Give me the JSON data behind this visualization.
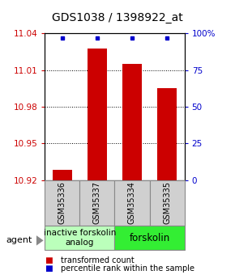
{
  "title": "GDS1038 / 1398922_at",
  "samples": [
    "GSM35336",
    "GSM35337",
    "GSM35334",
    "GSM35335"
  ],
  "bar_values": [
    10.928,
    11.028,
    11.015,
    10.995
  ],
  "percentile_values": [
    97,
    97,
    97,
    97
  ],
  "ylim_left": [
    10.92,
    11.04
  ],
  "ylim_right": [
    0,
    100
  ],
  "yticks_left": [
    10.92,
    10.95,
    10.98,
    11.01,
    11.04
  ],
  "ytick_labels_left": [
    "10.92",
    "10.95",
    "10.98",
    "11.01",
    "11.04"
  ],
  "yticks_right": [
    0,
    25,
    50,
    75,
    100
  ],
  "ytick_labels_right": [
    "0",
    "25",
    "50",
    "75",
    "100%"
  ],
  "bar_color": "#cc0000",
  "dot_color": "#0000cc",
  "bar_width": 0.55,
  "group0_label": "inactive forskolin\nanalog",
  "group0_color": "#bbffbb",
  "group1_label": "forskolin",
  "group1_color": "#33ee33",
  "legend_red_label": "transformed count",
  "legend_blue_label": "percentile rank within the sample",
  "agent_label": "agent",
  "title_fontsize": 10,
  "tick_fontsize": 7.5,
  "sample_fontsize": 7,
  "group_fontsize": 7.5,
  "legend_fontsize": 7,
  "left_tick_color": "#cc0000",
  "right_tick_color": "#0000cc",
  "grid_color": "#000000",
  "sample_box_color": "#d0d0d0",
  "sample_box_edge": "#888888"
}
